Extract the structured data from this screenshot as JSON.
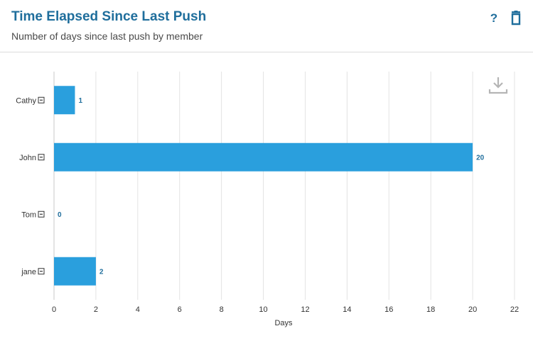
{
  "header": {
    "title": "Time Elapsed Since Last Push",
    "subtitle": "Number of days since last push by member",
    "help_label": "?"
  },
  "icons": {
    "help": "question-icon",
    "delete": "trash-icon",
    "download": "download-icon",
    "collapse": "minus-box-icon"
  },
  "colors": {
    "bar": "#2a9fdd",
    "title": "#1f6e9c",
    "value_label": "#1f6e9c",
    "grid": "#e3e3e3"
  },
  "chart_data": {
    "type": "bar",
    "orientation": "horizontal",
    "categories": [
      "Cathy",
      "John",
      "Tom",
      "jane"
    ],
    "values": [
      1,
      20,
      0,
      2
    ],
    "xlabel": "Days",
    "ylabel": "",
    "xlim": [
      0,
      22
    ],
    "xticks": [
      0,
      2,
      4,
      6,
      8,
      10,
      12,
      14,
      16,
      18,
      20,
      22
    ],
    "grid": true
  }
}
